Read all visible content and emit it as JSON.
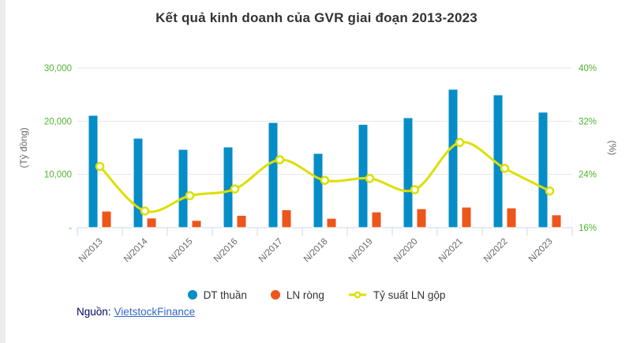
{
  "title": "Kết quả kinh doanh của GVR giai đoạn 2013-2023",
  "source": {
    "label": "Nguồn:",
    "link_text": "VietstockFinance"
  },
  "colors": {
    "revenue": "#058DC7",
    "profit": "#ED561B",
    "margin_line": "#DDDF00",
    "axis_tick_label": "#50B432",
    "grid": "#E6E6E6",
    "axis_line": "#CCD6EB",
    "title_text": "#333333",
    "axis_title": "#666666",
    "x_label": "#666666",
    "legend_text": "#333333",
    "source_label": "#000066",
    "link": "#3366CC"
  },
  "chart_data": {
    "type": "combo",
    "title": "Kết quả kinh doanh của GVR giai đoạn 2013-2023",
    "categories": [
      "N/2013",
      "N/2014",
      "N/2015",
      "N/2016",
      "N/2017",
      "N/2018",
      "N/2019",
      "N/2020",
      "N/2021",
      "N/2022",
      "N/2023"
    ],
    "series": [
      {
        "name": "DT thuần",
        "type": "bar",
        "axis": "left",
        "color": "#058DC7",
        "values": [
          21100,
          16800,
          14700,
          15150,
          19750,
          13950,
          19400,
          20650,
          26000,
          24950,
          21700
        ]
      },
      {
        "name": "LN ròng",
        "type": "bar",
        "axis": "left",
        "color": "#ED561B",
        "values": [
          3100,
          1800,
          1350,
          2300,
          3350,
          1750,
          2950,
          3550,
          3850,
          3700,
          2400
        ]
      },
      {
        "name": "Tỷ suất LN gộp",
        "type": "line",
        "axis": "right",
        "color": "#DDDF00",
        "values": [
          25.2,
          18.5,
          20.8,
          21.8,
          26.2,
          23.1,
          23.4,
          21.7,
          28.8,
          24.9,
          21.5
        ]
      }
    ],
    "left_axis": {
      "title": "(Tỷ đồng)",
      "min": 0,
      "max": 30000,
      "ticks": [
        {
          "value": 30000,
          "label": "30,000"
        },
        {
          "value": 20000,
          "label": "20,000"
        },
        {
          "value": 10000,
          "label": "10,000"
        },
        {
          "value": 0,
          "label": "-"
        }
      ]
    },
    "right_axis": {
      "title": "(%)",
      "min": 16,
      "max": 40,
      "ticks": [
        {
          "value": 40,
          "label": "40%"
        },
        {
          "value": 32,
          "label": "32%"
        },
        {
          "value": 24,
          "label": "24%"
        },
        {
          "value": 16,
          "label": "16%"
        }
      ]
    },
    "grid": "horizontal",
    "legend_position": "bottom"
  }
}
